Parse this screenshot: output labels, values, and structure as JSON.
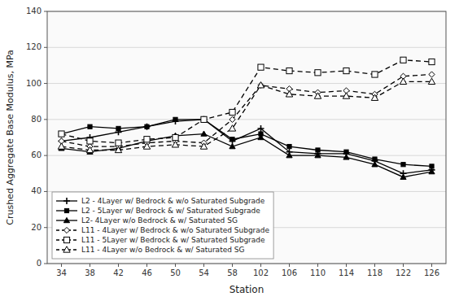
{
  "chart_data": {
    "type": "line",
    "x_label": "Station",
    "y_label": "Crushed Aggregate Base Modulus, MPa",
    "categories": [
      34,
      38,
      42,
      46,
      50,
      54,
      58,
      102,
      106,
      110,
      114,
      118,
      122,
      126
    ],
    "ylim": [
      0,
      140
    ],
    "yticks": [
      0,
      20,
      40,
      60,
      80,
      100,
      120,
      140
    ],
    "grid": true,
    "legend": "lower left",
    "series": [
      {
        "name": "L2 - 4Layer w/ Bedrock & w/o Saturated Subgrade",
        "color": "#000000",
        "marker": "plus",
        "line_style": "solid",
        "values": [
          68,
          70,
          73,
          76,
          79,
          80,
          68,
          75,
          62,
          61,
          61,
          57,
          50,
          52
        ]
      },
      {
        "name": "L2 - 5Layer w/ Bedrock & w/ Saturated Subgrade",
        "color": "#000000",
        "marker": "square",
        "line_style": "solid",
        "values": [
          72,
          76,
          75,
          76,
          80,
          80,
          69,
          72,
          65,
          63,
          62,
          58,
          55,
          54
        ]
      },
      {
        "name": "L2- 4Layer w/o Bedrock & w/ Saturated SG",
        "color": "#000000",
        "marker": "triangle",
        "line_style": "solid",
        "values": [
          64,
          62,
          64,
          68,
          71,
          72,
          65,
          70,
          60,
          60,
          59,
          55,
          48,
          51
        ]
      },
      {
        "name": "L11 - 4Layer w/ Bedrock & w/o Saturated Subgrade",
        "color": "#000000",
        "marker": "diamond-open",
        "line_style": "dashed",
        "values": [
          68,
          65,
          65,
          67,
          68,
          67,
          80,
          99,
          97,
          95,
          96,
          94,
          104,
          105
        ]
      },
      {
        "name": "L11 - 5Layer w/ Bedrock & w/ Saturated Subgrade",
        "color": "#000000",
        "marker": "square-open",
        "line_style": "dashed",
        "values": [
          72,
          68,
          67,
          69,
          70,
          80,
          84,
          109,
          107,
          106,
          107,
          105,
          113,
          112
        ]
      },
      {
        "name": "L11 - 4Layer w/o Bedrock & w/ Saturated SG",
        "color": "#000000",
        "marker": "triangle-open",
        "line_style": "dashed",
        "values": [
          65,
          63,
          63,
          65,
          66,
          65,
          75,
          99,
          94,
          93,
          93,
          92,
          101,
          101
        ]
      }
    ]
  }
}
